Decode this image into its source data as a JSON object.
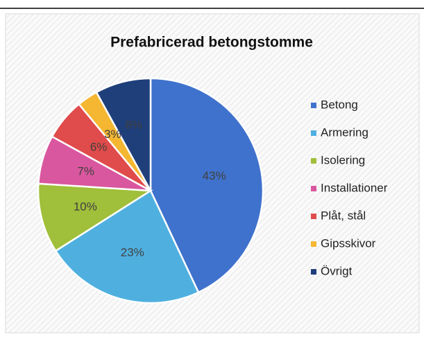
{
  "chart_data": {
    "type": "pie",
    "title": "Prefabricerad betongstomme",
    "categories": [
      "Betong",
      "Armering",
      "Isolering",
      "Installationer",
      "Plåt, stål",
      "Gipsskivor",
      "Övrigt"
    ],
    "values": [
      43,
      23,
      10,
      7,
      6,
      3,
      8
    ],
    "value_labels": [
      "43%",
      "23%",
      "10%",
      "7%",
      "6%",
      "3%",
      "8%"
    ],
    "colors": [
      "#3f72cc",
      "#4fb0e0",
      "#a0bf3a",
      "#d9579e",
      "#e04b4b",
      "#f5b731",
      "#1f3f7a"
    ],
    "legend": "right"
  }
}
